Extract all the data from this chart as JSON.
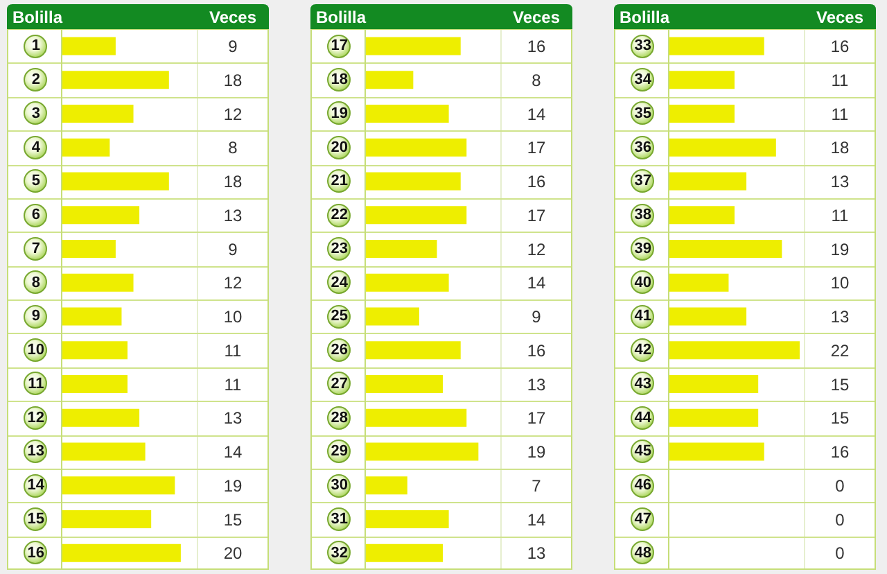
{
  "chart_data": [
    {
      "type": "bar",
      "orientation": "horizontal",
      "ylabel": "Bolilla",
      "xlabel": "Veces",
      "categories": [
        "1",
        "2",
        "3",
        "4",
        "5",
        "6",
        "7",
        "8",
        "9",
        "10",
        "11",
        "12",
        "13",
        "14",
        "15",
        "16"
      ],
      "values": [
        9,
        18,
        12,
        8,
        18,
        13,
        9,
        12,
        10,
        11,
        11,
        13,
        14,
        19,
        15,
        20
      ],
      "color": "#eeee00",
      "data_labels": true,
      "grid": "y",
      "tick_labels": "y"
    },
    {
      "type": "bar",
      "orientation": "horizontal",
      "ylabel": "Bolilla",
      "xlabel": "Veces",
      "categories": [
        "17",
        "18",
        "19",
        "20",
        "21",
        "22",
        "23",
        "24",
        "25",
        "26",
        "27",
        "28",
        "29",
        "30",
        "31",
        "32"
      ],
      "values": [
        16,
        8,
        14,
        17,
        16,
        17,
        12,
        14,
        9,
        16,
        13,
        17,
        19,
        7,
        14,
        13
      ],
      "color": "#eeee00",
      "data_labels": true,
      "grid": "y",
      "tick_labels": "y"
    },
    {
      "type": "bar",
      "orientation": "horizontal",
      "ylabel": "Bolilla",
      "xlabel": "Veces",
      "categories": [
        "33",
        "34",
        "35",
        "36",
        "37",
        "38",
        "39",
        "40",
        "41",
        "42",
        "43",
        "44",
        "45",
        "46",
        "47",
        "48"
      ],
      "values": [
        16,
        11,
        11,
        18,
        13,
        11,
        19,
        10,
        13,
        22,
        15,
        15,
        16,
        0,
        0,
        0
      ],
      "color": "#eeee00",
      "data_labels": true,
      "grid": "y",
      "tick_labels": "y"
    }
  ]
}
